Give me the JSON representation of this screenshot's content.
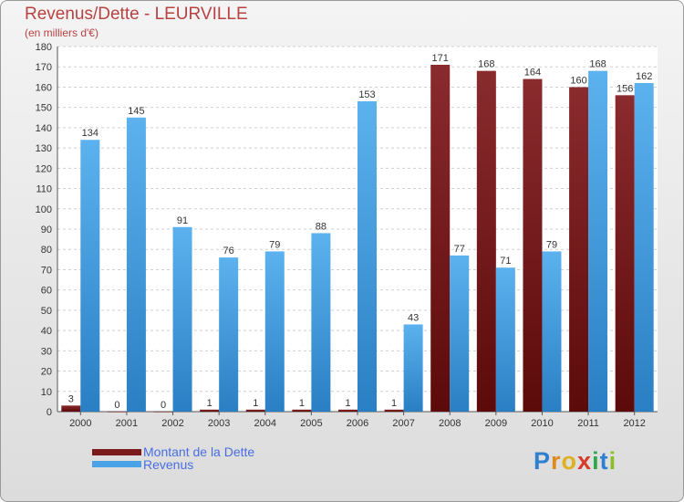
{
  "title": "Revenus/Dette - LEURVILLE",
  "subtitle": "(en milliers d'€)",
  "logo_text": "Proxiti",
  "colors": {
    "dette": "#7a1a1a",
    "revenus": "#4aa3e6",
    "title": "#b84242",
    "legend_text": "#4a6ee0"
  },
  "chart_data": {
    "type": "bar",
    "categories": [
      "2000",
      "2001",
      "2002",
      "2003",
      "2004",
      "2005",
      "2006",
      "2007",
      "2008",
      "2009",
      "2010",
      "2011",
      "2012"
    ],
    "series": [
      {
        "name": "Montant de la Dette",
        "values": [
          3,
          0,
          0,
          1,
          1,
          1,
          1,
          1,
          171,
          168,
          164,
          160,
          156
        ]
      },
      {
        "name": "Revenus",
        "values": [
          134,
          145,
          91,
          76,
          79,
          88,
          153,
          43,
          77,
          71,
          79,
          168,
          162
        ]
      }
    ],
    "ylim": [
      0,
      180
    ],
    "yticks": [
      0,
      10,
      20,
      30,
      40,
      50,
      60,
      70,
      80,
      90,
      100,
      110,
      120,
      130,
      140,
      150,
      160,
      170,
      180
    ],
    "grid": true,
    "legend_position": "bottom-left"
  }
}
